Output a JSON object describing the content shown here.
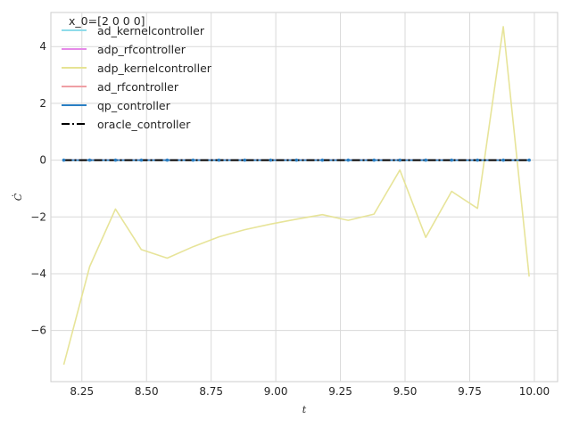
{
  "chart_data": {
    "type": "line",
    "title": "",
    "xlabel": "t",
    "ylabel": "Ċ",
    "xlim": [
      8.13,
      10.09
    ],
    "ylim": [
      -7.8,
      5.2
    ],
    "xticks": [
      8.25,
      8.5,
      8.75,
      9.0,
      9.25,
      9.5,
      9.75,
      10.0
    ],
    "xtick_labels": [
      "8.25",
      "8.50",
      "8.75",
      "9.00",
      "9.25",
      "9.50",
      "9.75",
      "10.00"
    ],
    "yticks": [
      -6,
      -4,
      -2,
      0,
      2,
      4
    ],
    "ytick_labels": [
      "−6",
      "−4",
      "−2",
      "0",
      "2",
      "4"
    ],
    "grid": true,
    "legend": {
      "title": "x_0=[2 0 0 0]",
      "placement": "top-left"
    },
    "x": [
      8.18,
      8.28,
      8.38,
      8.48,
      8.58,
      8.68,
      8.78,
      8.88,
      8.98,
      9.08,
      9.18,
      9.28,
      9.38,
      9.48,
      9.58,
      9.68,
      9.78,
      9.88,
      9.98
    ],
    "series": [
      {
        "name": "ad_kernelcontroller",
        "color": "#8fdcea",
        "style": "solid",
        "values": [
          0,
          0,
          0,
          0,
          0,
          0,
          0,
          0,
          0,
          0,
          0,
          0,
          0,
          0,
          0,
          0,
          0,
          0,
          0
        ]
      },
      {
        "name": "adp_rfcontroller",
        "color": "#e58ae8",
        "style": "solid",
        "values": [
          0,
          0,
          0,
          0,
          0,
          0,
          0,
          0,
          0,
          0,
          0,
          0,
          0,
          0,
          0,
          0,
          0,
          0,
          0
        ]
      },
      {
        "name": "adp_kernelcontroller",
        "color": "#e6e394",
        "style": "solid",
        "values": [
          -7.2,
          -3.75,
          -1.72,
          -3.15,
          -3.45,
          -3.05,
          -2.7,
          -2.45,
          -2.25,
          -2.08,
          -1.92,
          -2.12,
          -1.9,
          -0.35,
          -2.72,
          -1.1,
          -1.7,
          4.7,
          -4.1
        ]
      },
      {
        "name": "ad_rfcontroller",
        "color": "#ef9fa4",
        "style": "solid",
        "values": [
          0,
          0,
          0,
          0,
          0,
          0,
          0,
          0,
          0,
          0,
          0,
          0,
          0,
          0,
          0,
          0,
          0,
          0,
          0
        ]
      },
      {
        "name": "qp_controller",
        "color": "#2a7fc4",
        "style": "solid",
        "values": [
          0,
          0,
          0,
          0,
          0,
          0,
          0,
          0,
          0,
          0,
          0,
          0,
          0,
          0,
          0,
          0,
          0,
          0,
          0
        ]
      },
      {
        "name": "oracle_controller",
        "color": "#000000",
        "style": "dashdot",
        "values": [
          0,
          0,
          0,
          0,
          0,
          0,
          0,
          0,
          0,
          0,
          0,
          0,
          0,
          0,
          0,
          0,
          0,
          0,
          0
        ]
      }
    ]
  }
}
